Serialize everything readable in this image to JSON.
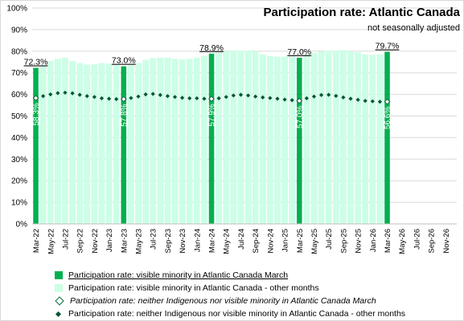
{
  "chart_data": {
    "type": "bar",
    "title": "Participation rate: Atlantic Canada",
    "subtitle": "not seasonally adjusted",
    "ylim": [
      0,
      100
    ],
    "y_ticks": [
      "0%",
      "10%",
      "20%",
      "30%",
      "40%",
      "50%",
      "60%",
      "70%",
      "80%",
      "90%",
      "100%"
    ],
    "x_tick_labels": [
      "Mar-22",
      "May-22",
      "Jul-22",
      "Sep-22",
      "Nov-22",
      "Jan-23",
      "Mar-23",
      "May-23",
      "Jul-23",
      "Sep-23",
      "Nov-23",
      "Jan-24",
      "Mar-24",
      "May-24",
      "Jul-24",
      "Sep-24",
      "Nov-24",
      "Jan-25",
      "Mar-25",
      "May-25",
      "Jul-25",
      "Sep-25",
      "Nov-25",
      "Jan-26",
      "Mar-26",
      "May-26",
      "Jul-26",
      "Sep-26",
      "Nov-26"
    ],
    "categories": [
      "Mar-22",
      "Apr-22",
      "May-22",
      "Jun-22",
      "Jul-22",
      "Aug-22",
      "Sep-22",
      "Oct-22",
      "Nov-22",
      "Dec-22",
      "Jan-23",
      "Feb-23",
      "Mar-23",
      "Apr-23",
      "May-23",
      "Jun-23",
      "Jul-23",
      "Aug-23",
      "Sep-23",
      "Oct-23",
      "Nov-23",
      "Dec-23",
      "Jan-24",
      "Feb-24",
      "Mar-24",
      "Apr-24",
      "May-24",
      "Jun-24",
      "Jul-24",
      "Aug-24",
      "Sep-24",
      "Oct-24",
      "Nov-24",
      "Dec-24",
      "Jan-25",
      "Feb-25",
      "Mar-25",
      "Apr-25",
      "May-25",
      "Jun-25",
      "Jul-25",
      "Aug-25",
      "Sep-25",
      "Oct-25",
      "Nov-25",
      "Dec-25",
      "Jan-26",
      "Feb-26",
      "Mar-26",
      "Apr-26",
      "May-26",
      "Jun-26",
      "Jul-26",
      "Aug-26",
      "Sep-26",
      "Oct-26",
      "Nov-26",
      "Dec-26"
    ],
    "series": [
      {
        "name": "Participation rate: visible minority in Atlantic Canada March",
        "kind": "bar",
        "color": "#00b050",
        "values": [
          72.3,
          null,
          null,
          null,
          null,
          null,
          null,
          null,
          null,
          null,
          null,
          null,
          73.0,
          null,
          null,
          null,
          null,
          null,
          null,
          null,
          null,
          null,
          null,
          null,
          78.9,
          null,
          null,
          null,
          null,
          null,
          null,
          null,
          null,
          null,
          null,
          null,
          77.0,
          null,
          null,
          null,
          null,
          null,
          null,
          null,
          null,
          null,
          null,
          null,
          79.7,
          null,
          null,
          null,
          null,
          null,
          null,
          null,
          null,
          null
        ],
        "data_labels": [
          "72.3%",
          "73.0%",
          "78.9%",
          "77.0%",
          "79.7%"
        ]
      },
      {
        "name": "Participation rate: visible minority in Atlantic Canada - other months",
        "kind": "bar",
        "color": "#ccffe6",
        "values": [
          null,
          73.5,
          75.5,
          76.5,
          77.0,
          75.5,
          74.5,
          73.8,
          74.0,
          74.5,
          74.2,
          73.6,
          null,
          73.5,
          74.5,
          76.0,
          76.8,
          77.0,
          77.0,
          76.5,
          76.2,
          76.5,
          77.0,
          77.8,
          null,
          79.5,
          80.0,
          80.2,
          80.3,
          80.3,
          80.0,
          78.5,
          77.8,
          77.5,
          77.5,
          77.5,
          null,
          78.5,
          79.2,
          79.8,
          80.2,
          80.2,
          80.5,
          80.0,
          79.5,
          78.5,
          78.3,
          78.5,
          null,
          null,
          null,
          null,
          null,
          null,
          null,
          null,
          null,
          null
        ]
      },
      {
        "name": "Participation rate: neither Indigenous nor visible minority in Atlantic Canada March",
        "kind": "marker",
        "marker": "diamond-open",
        "color": "#00693c",
        "values": [
          58.3,
          null,
          null,
          null,
          null,
          null,
          null,
          null,
          null,
          null,
          null,
          null,
          57.8,
          null,
          null,
          null,
          null,
          null,
          null,
          null,
          null,
          null,
          null,
          null,
          57.9,
          null,
          null,
          null,
          null,
          null,
          null,
          null,
          null,
          null,
          null,
          null,
          57.0,
          null,
          null,
          null,
          null,
          null,
          null,
          null,
          null,
          null,
          null,
          null,
          56.6,
          null,
          null,
          null,
          null,
          null,
          null,
          null,
          null,
          null
        ],
        "data_labels": [
          "58.3%",
          "57.8%",
          "57.9%",
          "57.0%",
          "56.6%"
        ]
      },
      {
        "name": "Participation rate: neither Indigenous nor visible minority in Atlantic Canada - other months",
        "kind": "marker",
        "marker": "diamond-filled",
        "color": "#0b5533",
        "values": [
          null,
          59.2,
          60.0,
          60.6,
          60.8,
          60.5,
          59.8,
          59.2,
          58.8,
          58.2,
          58.0,
          57.8,
          null,
          58.3,
          59.0,
          60.0,
          60.2,
          59.7,
          59.2,
          58.8,
          58.4,
          58.2,
          58.2,
          58.0,
          null,
          58.2,
          58.8,
          59.5,
          59.8,
          59.5,
          59.0,
          58.6,
          58.3,
          58.0,
          57.6,
          57.3,
          null,
          58.2,
          59.0,
          59.7,
          59.8,
          59.3,
          58.6,
          58.0,
          57.5,
          57.0,
          56.8,
          56.6,
          null,
          null,
          null,
          null,
          null,
          null,
          null,
          null,
          null,
          null
        ]
      }
    ],
    "grid": true,
    "legend_position": "bottom"
  }
}
